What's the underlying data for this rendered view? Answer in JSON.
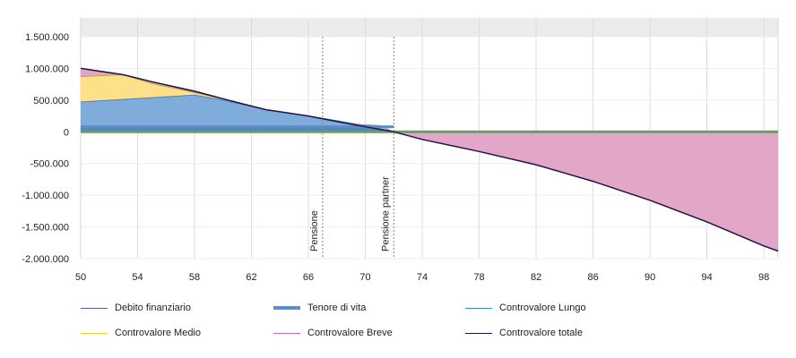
{
  "colors": {
    "debito": "#6f4f9c",
    "tenore": "#5b8ec4",
    "lungo": "#3f86c5",
    "medio": "#f5cb2e",
    "breve": "#c86aa8",
    "totale": "#1f1448",
    "lungo_fill": "#80acdc",
    "medio_fill": "#fde08a",
    "breve_fill": "#e2a7c8",
    "tenore_band_fill": "#4f86c6",
    "top_band": "#ececec",
    "flat_line": "#6f9a6c",
    "marker": "#b07a3a"
  },
  "chart_data": {
    "type": "area",
    "title": "",
    "xlabel": "",
    "ylabel": "",
    "xlim": [
      50,
      99
    ],
    "ylim": [
      -2000000,
      1500000
    ],
    "x_ticks": [
      50,
      54,
      58,
      62,
      66,
      70,
      74,
      78,
      82,
      86,
      90,
      94,
      98
    ],
    "y_ticks": [
      1500000,
      1000000,
      500000,
      0,
      -500000,
      -1000000,
      -1500000,
      -2000000
    ],
    "y_tick_labels": [
      "1.500.000",
      "1.000.000",
      "500.000",
      "0",
      "-500.000",
      "-1.000.000",
      "-1.500.000",
      "-2.000.000"
    ],
    "grid": true,
    "legend_position": "bottom",
    "markers": [
      {
        "x": 67,
        "label": "Pensione"
      },
      {
        "x": 72,
        "label": "Pensione partner"
      }
    ],
    "series": [
      {
        "name": "Debito finanziario",
        "x": [
          50,
          99
        ],
        "values": [
          0,
          0
        ]
      },
      {
        "name": "Tenore di vita",
        "x": [
          50,
          72
        ],
        "values": [
          80000,
          80000
        ]
      },
      {
        "name": "Controvalore Lungo",
        "x": [
          50,
          58,
          60,
          63,
          66,
          70,
          72
        ],
        "values": [
          470000,
          580000,
          500000,
          350000,
          250000,
          100000,
          0
        ]
      },
      {
        "name": "Controvalore Medio",
        "x": [
          50,
          53,
          55,
          58,
          60
        ],
        "values": [
          870000,
          900000,
          760000,
          620000,
          520000
        ]
      },
      {
        "name": "Controvalore Breve",
        "x": [
          50,
          53,
          55,
          60,
          63,
          66,
          69,
          71,
          72,
          74,
          78,
          82,
          86,
          90,
          94,
          98,
          99
        ],
        "values": [
          1000000,
          900000,
          790000,
          520000,
          350000,
          250000,
          120000,
          100000,
          0,
          -120000,
          -310000,
          -520000,
          -780000,
          -1080000,
          -1420000,
          -1800000,
          -1880000
        ]
      },
      {
        "name": "Controvalore totale",
        "x": [
          50,
          53,
          55,
          58,
          60,
          63,
          66,
          69,
          72,
          74,
          78,
          82,
          86,
          90,
          94,
          98,
          99
        ],
        "values": [
          1000000,
          900000,
          790000,
          640000,
          520000,
          350000,
          250000,
          120000,
          0,
          -120000,
          -310000,
          -520000,
          -780000,
          -1080000,
          -1420000,
          -1800000,
          -1880000
        ]
      }
    ]
  },
  "legend": [
    {
      "label": "Debito finanziario",
      "key": "debito"
    },
    {
      "label": "Tenore di vita",
      "key": "tenore"
    },
    {
      "label": "Controvalore Lungo",
      "key": "lungo"
    },
    {
      "label": "Controvalore Medio",
      "key": "medio"
    },
    {
      "label": "Controvalore Breve",
      "key": "breve"
    },
    {
      "label": "Controvalore totale",
      "key": "totale"
    }
  ]
}
